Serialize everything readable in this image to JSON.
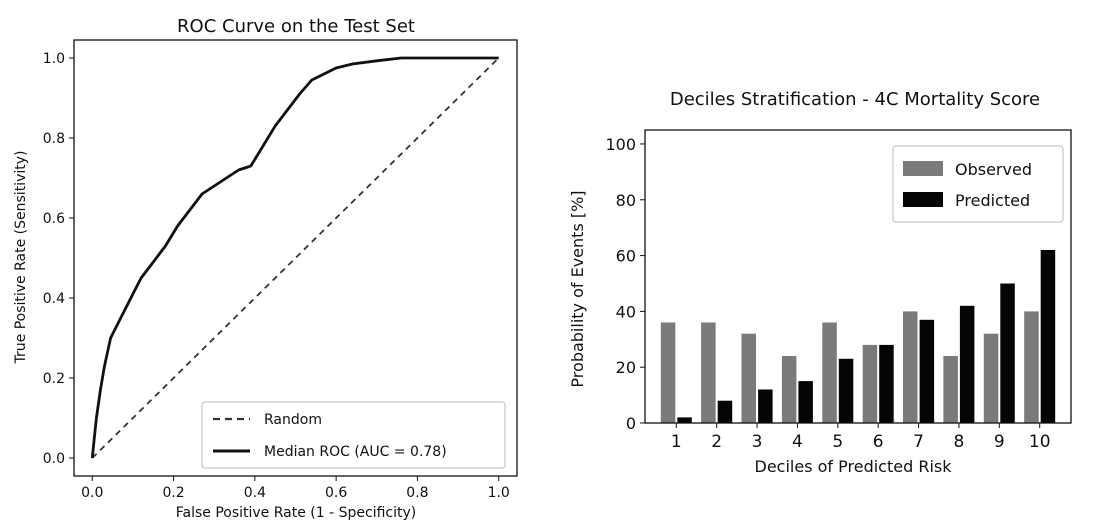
{
  "chart_data": [
    {
      "type": "line",
      "title": "ROC Curve on the Test Set",
      "xlabel": "False Positive Rate (1 - Specificity)",
      "ylabel": "True Positive Rate (Sensitivity)",
      "xlim": [
        0,
        1
      ],
      "ylim": [
        0,
        1
      ],
      "xticks": [
        "0.0",
        "0.2",
        "0.4",
        "0.6",
        "0.8",
        "1.0"
      ],
      "yticks": [
        "0.0",
        "0.2",
        "0.4",
        "0.6",
        "0.8",
        "1.0"
      ],
      "grid": false,
      "legend_position": "lower-right",
      "series": [
        {
          "name": "Random",
          "style": "dashed",
          "color": "#333333",
          "x": [
            0,
            1
          ],
          "y": [
            0,
            1
          ]
        },
        {
          "name": "Median ROC (AUC = 0.78)",
          "style": "solid",
          "color": "#111111",
          "x": [
            0,
            0.005,
            0.01,
            0.02,
            0.03,
            0.045,
            0.07,
            0.1,
            0.12,
            0.15,
            0.18,
            0.21,
            0.24,
            0.27,
            0.3,
            0.33,
            0.36,
            0.39,
            0.42,
            0.45,
            0.48,
            0.51,
            0.54,
            0.56,
            0.6,
            0.64,
            0.7,
            0.76,
            0.85,
            0.95,
            1.0
          ],
          "y": [
            0,
            0.05,
            0.1,
            0.17,
            0.23,
            0.3,
            0.35,
            0.41,
            0.45,
            0.49,
            0.53,
            0.58,
            0.62,
            0.66,
            0.68,
            0.7,
            0.72,
            0.73,
            0.78,
            0.83,
            0.87,
            0.91,
            0.945,
            0.955,
            0.975,
            0.985,
            0.993,
            1.0,
            1.0,
            1.0,
            1.0
          ]
        }
      ]
    },
    {
      "type": "bar",
      "title": "Deciles Stratification - 4C Mortality Score",
      "xlabel": "Deciles of Predicted Risk",
      "ylabel": "Probability of Events [%]",
      "ylim": [
        0,
        100
      ],
      "yticks": [
        "0",
        "20",
        "40",
        "60",
        "80",
        "100"
      ],
      "categories": [
        "1",
        "2",
        "3",
        "4",
        "5",
        "6",
        "7",
        "8",
        "9",
        "10"
      ],
      "grid": false,
      "legend_position": "top-right",
      "series": [
        {
          "name": "Observed",
          "color": "#7a7a7a",
          "values": [
            36,
            36,
            32,
            24,
            36,
            28,
            40,
            24,
            32,
            40
          ]
        },
        {
          "name": "Predicted",
          "color": "#050505",
          "values": [
            2,
            8,
            12,
            15,
            23,
            28,
            37,
            42,
            50,
            62
          ]
        }
      ]
    }
  ]
}
